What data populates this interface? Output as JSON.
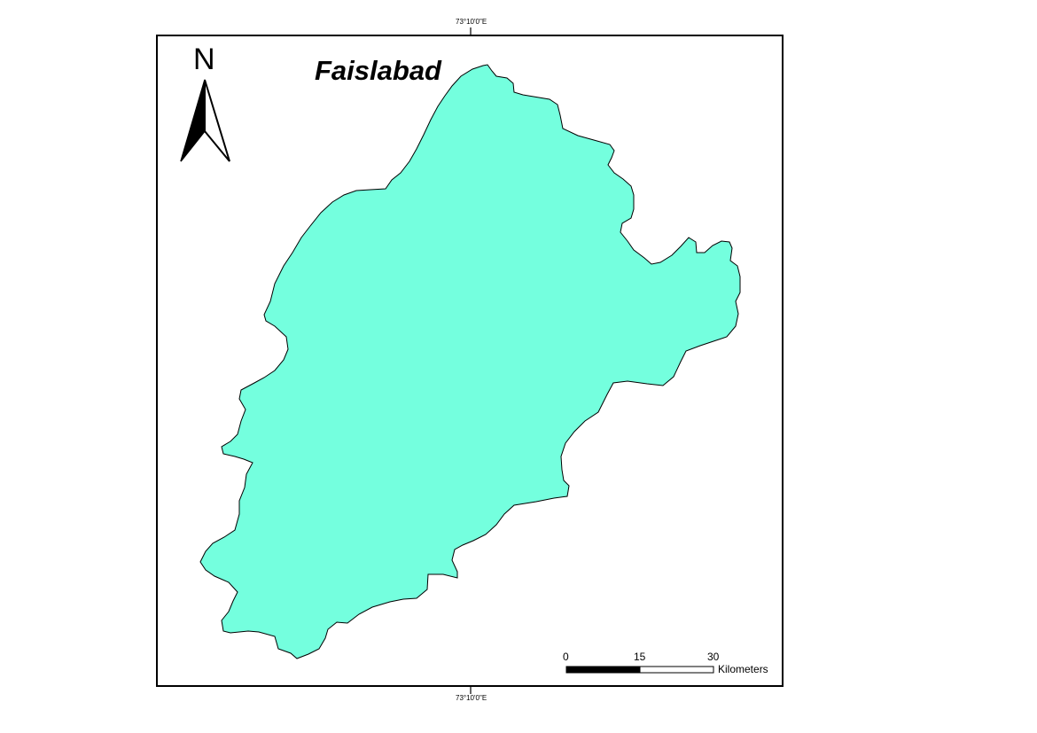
{
  "map": {
    "title": "Faislabad",
    "north_arrow_label": "N",
    "graticule": {
      "top_label": "73°10'0\"E",
      "bottom_label": "73°10'0\"E"
    },
    "region": {
      "fill_color": "#74FFDE",
      "outline_color": "#000000"
    },
    "scale_bar": {
      "ticks": [
        "0",
        "15",
        "30"
      ],
      "units": "Kilometers"
    }
  }
}
